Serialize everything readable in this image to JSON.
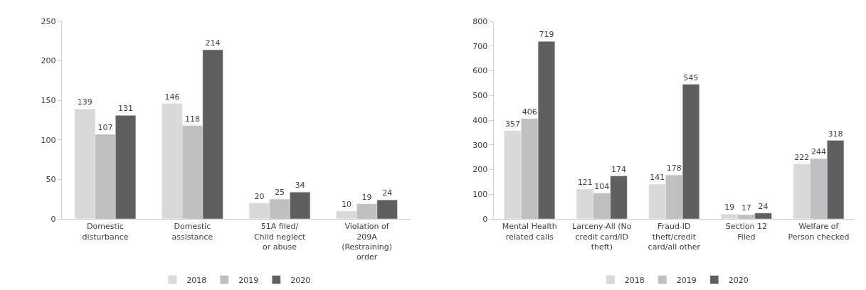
{
  "chart_data": [
    {
      "type": "bar",
      "categories": [
        "Domestic disturbance",
        "Domestic assistance",
        "51A filed/ Child neglect or abuse",
        "Violation of 209A (Restraining) order"
      ],
      "series": [
        {
          "name": "2018",
          "color": "#d9d9d9",
          "values": [
            139,
            146,
            20,
            10
          ]
        },
        {
          "name": "2019",
          "color": "#bfbfbf",
          "values": [
            107,
            118,
            25,
            19
          ]
        },
        {
          "name": "2020",
          "color": "#5f5f5f",
          "values": [
            131,
            214,
            34,
            24
          ]
        }
      ],
      "ylim": [
        0,
        250
      ],
      "yticks": [
        0,
        50,
        100,
        150,
        200,
        250
      ],
      "data_labels": true,
      "grid": false,
      "legend": "bottom"
    },
    {
      "type": "bar",
      "categories": [
        "Mental Health related calls",
        "Larceny-All (No credit card/ID theft)",
        "Fraud-ID theft/credit card/all other",
        "Section 12 Filed",
        "Welfare of Person checked"
      ],
      "series": [
        {
          "name": "2018",
          "color": "#d9d9d9",
          "values": [
            357,
            121,
            141,
            19,
            222
          ]
        },
        {
          "name": "2019",
          "color": "#bfbfbf",
          "values": [
            406,
            104,
            178,
            17,
            244
          ]
        },
        {
          "name": "2020",
          "color": "#5f5f5f",
          "values": [
            719,
            174,
            545,
            24,
            318
          ]
        }
      ],
      "ylim": [
        0,
        800
      ],
      "yticks": [
        0,
        100,
        200,
        300,
        400,
        500,
        600,
        700,
        800
      ],
      "data_labels": true,
      "grid": false,
      "legend": "bottom"
    }
  ]
}
